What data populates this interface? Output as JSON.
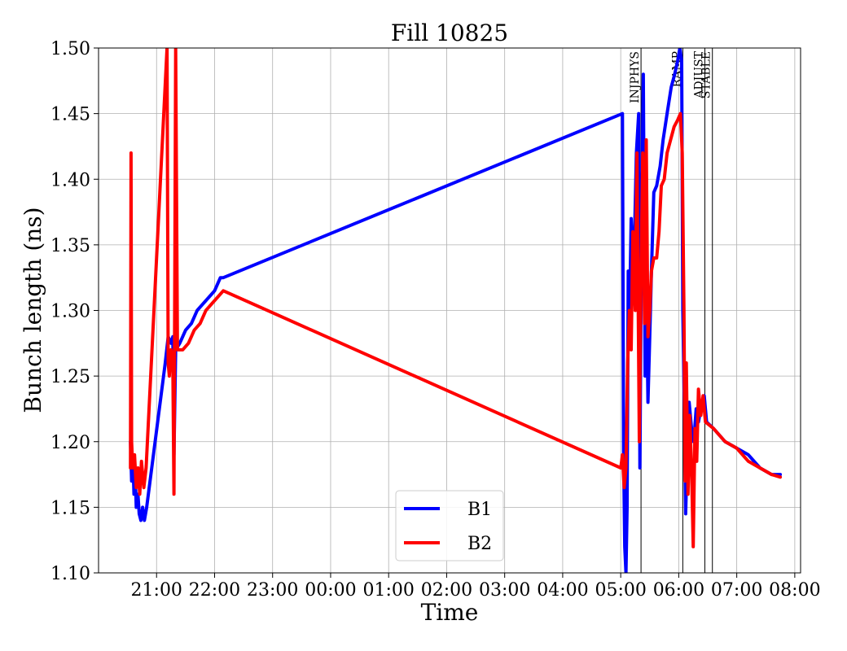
{
  "chart_data": {
    "type": "line",
    "title": "Fill 10825",
    "xlabel": "Time",
    "ylabel": "Bunch length (ns)",
    "x_unit": "hours (clock time; values >= 24 are after midnight of the next day)",
    "xlim": [
      20.0,
      32.1
    ],
    "ylim": [
      1.1,
      1.5
    ],
    "x_ticks": [
      {
        "value": 21,
        "label": "21:00"
      },
      {
        "value": 22,
        "label": "22:00"
      },
      {
        "value": 23,
        "label": "23:00"
      },
      {
        "value": 24,
        "label": "00:00"
      },
      {
        "value": 25,
        "label": "01:00"
      },
      {
        "value": 26,
        "label": "02:00"
      },
      {
        "value": 27,
        "label": "03:00"
      },
      {
        "value": 28,
        "label": "04:00"
      },
      {
        "value": 29,
        "label": "05:00"
      },
      {
        "value": 30,
        "label": "06:00"
      },
      {
        "value": 31,
        "label": "07:00"
      },
      {
        "value": 32,
        "label": "08:00"
      }
    ],
    "y_ticks": [
      {
        "value": 1.1,
        "label": "1.10"
      },
      {
        "value": 1.15,
        "label": "1.15"
      },
      {
        "value": 1.2,
        "label": "1.20"
      },
      {
        "value": 1.25,
        "label": "1.25"
      },
      {
        "value": 1.3,
        "label": "1.30"
      },
      {
        "value": 1.35,
        "label": "1.35"
      },
      {
        "value": 1.4,
        "label": "1.40"
      },
      {
        "value": 1.45,
        "label": "1.45"
      },
      {
        "value": 1.5,
        "label": "1.50"
      }
    ],
    "grid": true,
    "legend_position": "bottom-center",
    "phase_markers": [
      {
        "label": "INJPHYS",
        "x": 29.35
      },
      {
        "label": "RAMP",
        "x": 30.07
      },
      {
        "label": "ADJUST",
        "x": 30.45
      },
      {
        "label": "STABLE",
        "x": 30.58
      }
    ],
    "series": [
      {
        "name": "B1",
        "color": "#0000ff",
        "points": [
          [
            20.55,
            1.2
          ],
          [
            20.57,
            1.17
          ],
          [
            20.59,
            1.19
          ],
          [
            20.61,
            1.16
          ],
          [
            20.63,
            1.18
          ],
          [
            20.65,
            1.15
          ],
          [
            20.68,
            1.16
          ],
          [
            20.7,
            1.145
          ],
          [
            20.73,
            1.14
          ],
          [
            20.76,
            1.15
          ],
          [
            20.79,
            1.14
          ],
          [
            20.83,
            1.15
          ],
          [
            21.15,
            1.26
          ],
          [
            21.2,
            1.28
          ],
          [
            21.25,
            1.275
          ],
          [
            21.28,
            1.28
          ],
          [
            21.3,
            1.19
          ],
          [
            21.33,
            1.27
          ],
          [
            21.4,
            1.275
          ],
          [
            21.5,
            1.285
          ],
          [
            21.6,
            1.29
          ],
          [
            21.7,
            1.3
          ],
          [
            21.8,
            1.305
          ],
          [
            21.9,
            1.31
          ],
          [
            22.0,
            1.315
          ],
          [
            22.1,
            1.325
          ],
          [
            22.15,
            1.325
          ],
          [
            29.03,
            1.45
          ],
          [
            29.05,
            1.19
          ],
          [
            29.07,
            1.12
          ],
          [
            29.09,
            1.1
          ],
          [
            29.11,
            1.15
          ],
          [
            29.13,
            1.33
          ],
          [
            29.15,
            1.29
          ],
          [
            29.18,
            1.37
          ],
          [
            29.22,
            1.32
          ],
          [
            29.27,
            1.42
          ],
          [
            29.31,
            1.45
          ],
          [
            29.33,
            1.18
          ],
          [
            29.36,
            1.37
          ],
          [
            29.39,
            1.48
          ],
          [
            29.42,
            1.25
          ],
          [
            29.45,
            1.3
          ],
          [
            29.47,
            1.23
          ],
          [
            29.5,
            1.28
          ],
          [
            29.53,
            1.33
          ],
          [
            29.57,
            1.39
          ],
          [
            29.62,
            1.395
          ],
          [
            29.68,
            1.41
          ],
          [
            29.73,
            1.43
          ],
          [
            29.8,
            1.45
          ],
          [
            29.87,
            1.47
          ],
          [
            29.93,
            1.48
          ],
          [
            29.98,
            1.49
          ],
          [
            30.02,
            1.5
          ],
          [
            30.05,
            1.49
          ],
          [
            30.07,
            1.3
          ],
          [
            30.1,
            1.22
          ],
          [
            30.12,
            1.145
          ],
          [
            30.15,
            1.2
          ],
          [
            30.18,
            1.23
          ],
          [
            30.22,
            1.21
          ],
          [
            30.26,
            1.2
          ],
          [
            30.3,
            1.225
          ],
          [
            30.34,
            1.215
          ],
          [
            30.4,
            1.23
          ],
          [
            30.44,
            1.235
          ],
          [
            30.48,
            1.215
          ],
          [
            30.6,
            1.21
          ],
          [
            30.8,
            1.2
          ],
          [
            31.0,
            1.195
          ],
          [
            31.2,
            1.19
          ],
          [
            31.4,
            1.18
          ],
          [
            31.6,
            1.175
          ],
          [
            31.75,
            1.175
          ]
        ]
      },
      {
        "name": "B2",
        "color": "#ff0000",
        "points": [
          [
            20.55,
            1.18
          ],
          [
            20.56,
            1.42
          ],
          [
            20.57,
            1.2
          ],
          [
            20.59,
            1.18
          ],
          [
            20.62,
            1.19
          ],
          [
            20.65,
            1.165
          ],
          [
            20.68,
            1.18
          ],
          [
            20.71,
            1.16
          ],
          [
            20.74,
            1.185
          ],
          [
            20.78,
            1.165
          ],
          [
            20.82,
            1.18
          ],
          [
            21.18,
            1.5
          ],
          [
            21.2,
            1.26
          ],
          [
            21.22,
            1.25
          ],
          [
            21.25,
            1.27
          ],
          [
            21.28,
            1.26
          ],
          [
            21.3,
            1.16
          ],
          [
            21.33,
            1.5
          ],
          [
            21.36,
            1.27
          ],
          [
            21.45,
            1.27
          ],
          [
            21.55,
            1.275
          ],
          [
            21.65,
            1.285
          ],
          [
            21.75,
            1.29
          ],
          [
            21.85,
            1.3
          ],
          [
            21.95,
            1.305
          ],
          [
            22.05,
            1.31
          ],
          [
            22.15,
            1.315
          ],
          [
            29.0,
            1.18
          ],
          [
            29.03,
            1.19
          ],
          [
            29.06,
            1.165
          ],
          [
            29.09,
            1.18
          ],
          [
            29.12,
            1.26
          ],
          [
            29.15,
            1.3
          ],
          [
            29.18,
            1.27
          ],
          [
            29.21,
            1.36
          ],
          [
            29.25,
            1.3
          ],
          [
            29.28,
            1.42
          ],
          [
            29.32,
            1.2
          ],
          [
            29.35,
            1.33
          ],
          [
            29.38,
            1.42
          ],
          [
            29.41,
            1.29
          ],
          [
            29.44,
            1.43
          ],
          [
            29.47,
            1.28
          ],
          [
            29.5,
            1.3
          ],
          [
            29.53,
            1.33
          ],
          [
            29.57,
            1.34
          ],
          [
            29.62,
            1.34
          ],
          [
            29.66,
            1.36
          ],
          [
            29.7,
            1.395
          ],
          [
            29.75,
            1.4
          ],
          [
            29.8,
            1.42
          ],
          [
            29.86,
            1.43
          ],
          [
            29.92,
            1.44
          ],
          [
            29.98,
            1.445
          ],
          [
            30.03,
            1.45
          ],
          [
            30.06,
            1.42
          ],
          [
            30.09,
            1.3
          ],
          [
            30.11,
            1.17
          ],
          [
            30.13,
            1.26
          ],
          [
            30.16,
            1.16
          ],
          [
            30.19,
            1.22
          ],
          [
            30.22,
            1.18
          ],
          [
            30.25,
            1.12
          ],
          [
            30.28,
            1.21
          ],
          [
            30.31,
            1.185
          ],
          [
            30.34,
            1.24
          ],
          [
            30.38,
            1.22
          ],
          [
            30.42,
            1.235
          ],
          [
            30.46,
            1.215
          ],
          [
            30.6,
            1.21
          ],
          [
            30.8,
            1.2
          ],
          [
            31.0,
            1.195
          ],
          [
            31.2,
            1.185
          ],
          [
            31.4,
            1.18
          ],
          [
            31.6,
            1.175
          ],
          [
            31.75,
            1.173
          ]
        ]
      }
    ]
  }
}
